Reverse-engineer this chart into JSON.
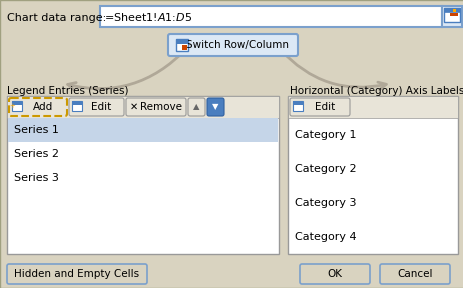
{
  "bg_color": "#d9d3c0",
  "white": "#ffffff",
  "text_color": "#000000",
  "title_text": "Chart data range:",
  "range_text": "=Sheet1!$A$1:$D$5",
  "switch_btn_text": "Switch Row/Column",
  "legend_title": "Legend Entries (Series)",
  "axis_title": "Horizontal (Category) Axis Labels",
  "series_items": [
    "Series 1",
    "Series 2",
    "Series 3"
  ],
  "category_items": [
    "Category 1",
    "Category 2",
    "Category 3",
    "Category 4"
  ],
  "add_btn": "  Add",
  "edit_btn": "  Edit",
  "remove_btn": "Remove",
  "edit_btn2": "  Edit",
  "bottom_left_btn": "Hidden and Empty Cells",
  "ok_btn": "OK",
  "cancel_btn": "Cancel",
  "figsize": [
    4.64,
    2.88
  ],
  "dpi": 100
}
